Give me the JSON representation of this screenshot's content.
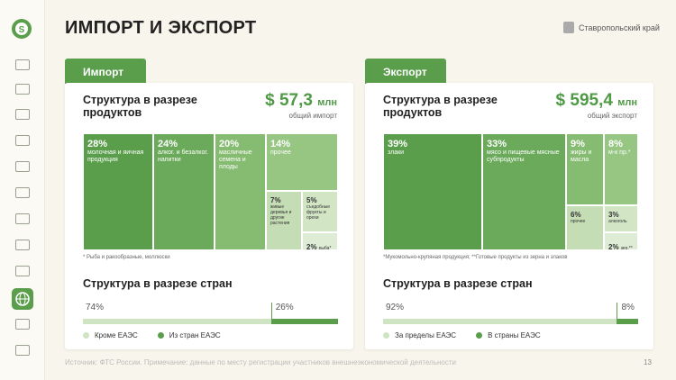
{
  "header": {
    "title": "ИМПОРТ И ЭКСПОРТ",
    "region": "Ставропольский край"
  },
  "panels": [
    {
      "tab": "Импорт",
      "products_title": "Структура в разрезе продуктов",
      "total": "$ 57,3",
      "unit": "млн",
      "total_caption": "общий импорт",
      "tiles": [
        {
          "percent": "28%",
          "text": "молочная и яичная продукция"
        },
        {
          "percent": "24%",
          "text": "алког. и безалког. напитки"
        },
        {
          "percent": "20%",
          "text": "масличные семена и плоды"
        },
        {
          "percent": "14%",
          "text": "прочее"
        },
        {
          "percent": "7%",
          "text": "живые деревья и другие растения"
        },
        {
          "percent": "5%",
          "text": "съедобные фрукты и орехи"
        },
        {
          "percent": "2%",
          "text": "рыба*"
        }
      ],
      "footnote": "* Рыба и ракообразные, моллюски",
      "countries_title": "Структура в разрезе стран",
      "shares": [
        {
          "value": 74,
          "label": "74%",
          "legend": "Кроме ЕАЭС"
        },
        {
          "value": 26,
          "label": "26%",
          "legend": "Из стран ЕАЭС"
        }
      ]
    },
    {
      "tab": "Экспорт",
      "products_title": "Структура в разрезе продуктов",
      "total": "$ 595,4",
      "unit": "млн",
      "total_caption": "общий экспорт",
      "tiles": [
        {
          "percent": "39%",
          "text": "злаки"
        },
        {
          "percent": "33%",
          "text": "мясо и пищевые мясные субпродукты"
        },
        {
          "percent": "9%",
          "text": "жиры и масла"
        },
        {
          "percent": "8%",
          "text": "м-к пр.*"
        },
        {
          "percent": "6%",
          "text": "прочее"
        },
        {
          "percent": "3%",
          "text": "алкоголь"
        },
        {
          "percent": "2%",
          "text": "зер.**"
        }
      ],
      "footnote": "*Мукомольно-крупяная продукция; **Готовые продукты из зерна и злаков",
      "countries_title": "Структура в разрезе стран",
      "shares": [
        {
          "value": 92,
          "label": "92%",
          "legend": "За пределы ЕАЭС"
        },
        {
          "value": 8,
          "label": "8%",
          "legend": "В страны ЕАЭС"
        }
      ]
    }
  ],
  "footer": {
    "source": "Источник: ФТС России. Примечание: данные по месту регистрации участников внешнеэкономической деятельности",
    "page": "13"
  }
}
